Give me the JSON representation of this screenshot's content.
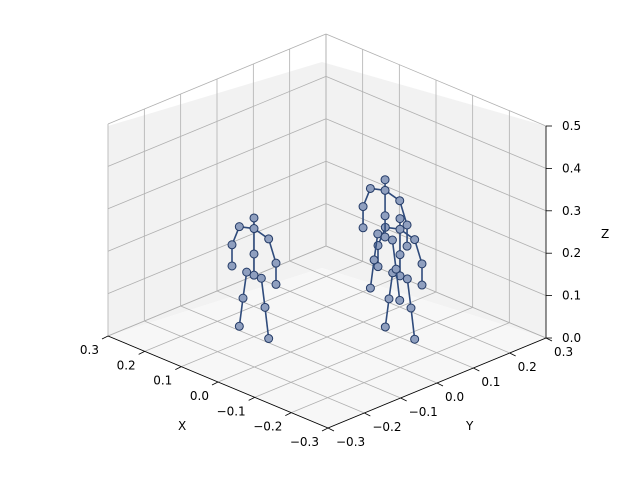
{
  "chart_data": {
    "type": "scatter",
    "title": "",
    "xlabel": "X",
    "ylabel": "Y",
    "zlabel": "Z",
    "xlim": [
      -0.3,
      0.3
    ],
    "ylim": [
      -0.3,
      0.3
    ],
    "zlim": [
      0,
      0.5
    ],
    "x_ticks": [
      "−0.3",
      "−0.2",
      "−0.1",
      "0.0",
      "0.1",
      "0.2",
      "0.3"
    ],
    "y_ticks": [
      "−0.3",
      "−0.2",
      "−0.1",
      "0.0",
      "0.1",
      "0.2",
      "0.3"
    ],
    "z_ticks": [
      "0.0",
      "0.1",
      "0.2",
      "0.3",
      "0.4",
      "0.5"
    ],
    "grid": true,
    "skeletons": [
      {
        "joints": [
          [
            -0.1,
            0.1,
            0.28
          ],
          [
            -0.1,
            0.1,
            0.255
          ],
          [
            -0.14,
            0.1,
            0.245
          ],
          [
            -0.06,
            0.1,
            0.245
          ],
          [
            -0.16,
            0.1,
            0.195
          ],
          [
            -0.04,
            0.1,
            0.195
          ],
          [
            -0.16,
            0.1,
            0.145
          ],
          [
            -0.04,
            0.1,
            0.145
          ],
          [
            -0.1,
            0.1,
            0.195
          ],
          [
            -0.1,
            0.1,
            0.145
          ],
          [
            -0.12,
            0.1,
            0.145
          ],
          [
            -0.08,
            0.1,
            0.145
          ],
          [
            -0.13,
            0.1,
            0.08
          ],
          [
            -0.07,
            0.1,
            0.08
          ],
          [
            -0.14,
            0.1,
            0.01
          ],
          [
            -0.06,
            0.1,
            0.01
          ]
        ],
        "bones": [
          [
            0,
            1
          ],
          [
            1,
            2
          ],
          [
            1,
            3
          ],
          [
            2,
            4
          ],
          [
            4,
            6
          ],
          [
            3,
            5
          ],
          [
            5,
            7
          ],
          [
            1,
            8
          ],
          [
            8,
            9
          ],
          [
            9,
            10
          ],
          [
            9,
            11
          ],
          [
            10,
            12
          ],
          [
            12,
            14
          ],
          [
            11,
            13
          ],
          [
            13,
            15
          ]
        ]
      },
      {
        "joints": [
          [
            0.1,
            -0.1,
            0.28
          ],
          [
            0.1,
            -0.1,
            0.255
          ],
          [
            0.06,
            -0.1,
            0.245
          ],
          [
            0.14,
            -0.1,
            0.245
          ],
          [
            0.04,
            -0.1,
            0.195
          ],
          [
            0.16,
            -0.1,
            0.195
          ],
          [
            0.04,
            -0.1,
            0.145
          ],
          [
            0.16,
            -0.1,
            0.145
          ],
          [
            0.1,
            -0.1,
            0.195
          ],
          [
            0.1,
            -0.1,
            0.145
          ],
          [
            0.08,
            -0.1,
            0.145
          ],
          [
            0.12,
            -0.1,
            0.145
          ],
          [
            0.07,
            -0.1,
            0.08
          ],
          [
            0.13,
            -0.1,
            0.08
          ],
          [
            0.06,
            -0.1,
            0.01
          ],
          [
            0.14,
            -0.1,
            0.01
          ]
        ],
        "bones": [
          [
            0,
            1
          ],
          [
            1,
            2
          ],
          [
            1,
            3
          ],
          [
            2,
            4
          ],
          [
            4,
            6
          ],
          [
            3,
            5
          ],
          [
            5,
            7
          ],
          [
            1,
            8
          ],
          [
            8,
            9
          ],
          [
            9,
            10
          ],
          [
            9,
            11
          ],
          [
            10,
            12
          ],
          [
            12,
            14
          ],
          [
            11,
            13
          ],
          [
            13,
            15
          ]
        ]
      },
      {
        "joints": [
          [
            0.02,
            0.18,
            0.3
          ],
          [
            0.02,
            0.18,
            0.275
          ],
          [
            -0.02,
            0.18,
            0.265
          ],
          [
            0.06,
            0.18,
            0.265
          ],
          [
            -0.04,
            0.18,
            0.215
          ],
          [
            0.08,
            0.18,
            0.215
          ],
          [
            -0.04,
            0.18,
            0.165
          ],
          [
            0.08,
            0.18,
            0.165
          ],
          [
            0.02,
            0.18,
            0.215
          ],
          [
            0.02,
            0.18,
            0.165
          ],
          [
            0.0,
            0.18,
            0.165
          ],
          [
            0.04,
            0.18,
            0.165
          ],
          [
            -0.01,
            0.18,
            0.1
          ],
          [
            0.05,
            0.18,
            0.1
          ],
          [
            -0.02,
            0.18,
            0.03
          ],
          [
            0.06,
            0.18,
            0.03
          ]
        ],
        "bones": [
          [
            0,
            1
          ],
          [
            1,
            2
          ],
          [
            1,
            3
          ],
          [
            2,
            4
          ],
          [
            4,
            6
          ],
          [
            3,
            5
          ],
          [
            5,
            7
          ],
          [
            1,
            8
          ],
          [
            8,
            9
          ],
          [
            9,
            10
          ],
          [
            9,
            11
          ],
          [
            10,
            12
          ],
          [
            12,
            14
          ],
          [
            11,
            13
          ],
          [
            13,
            15
          ]
        ]
      }
    ]
  }
}
